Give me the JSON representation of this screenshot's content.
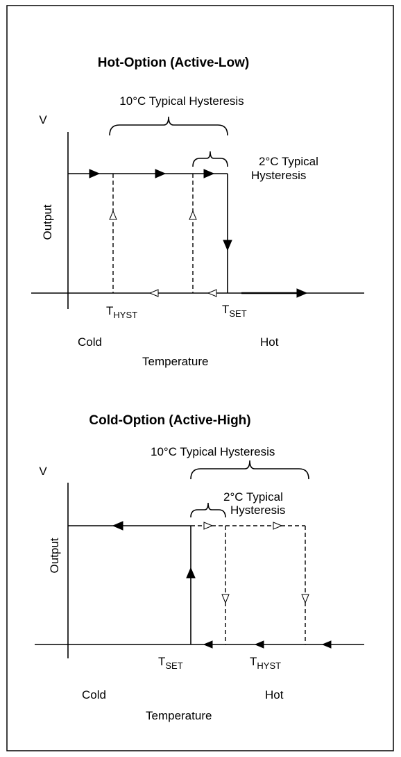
{
  "top": {
    "title": "Hot-Option (Active-Low)",
    "hysteresis_wide": "10°C Typical Hysteresis",
    "hysteresis_narrow_1": "2°C Typical",
    "hysteresis_narrow_2": "Hysteresis",
    "y_axis_top": "V",
    "y_axis_label": "Output",
    "t_hyst": {
      "main": "T",
      "sub": "HYST"
    },
    "t_set": {
      "main": "T",
      "sub": "SET"
    },
    "cold": "Cold",
    "hot": "Hot",
    "x_axis_label": "Temperature"
  },
  "bottom": {
    "title": "Cold-Option (Active-High)",
    "hysteresis_wide": "10°C Typical Hysteresis",
    "hysteresis_narrow_1": "2°C Typical",
    "hysteresis_narrow_2": "Hysteresis",
    "y_axis_top": "V",
    "y_axis_label": "Output",
    "t_set": {
      "main": "T",
      "sub": "SET"
    },
    "t_hyst": {
      "main": "T",
      "sub": "HYST"
    },
    "cold": "Cold",
    "hot": "Hot",
    "x_axis_label": "Temperature"
  }
}
